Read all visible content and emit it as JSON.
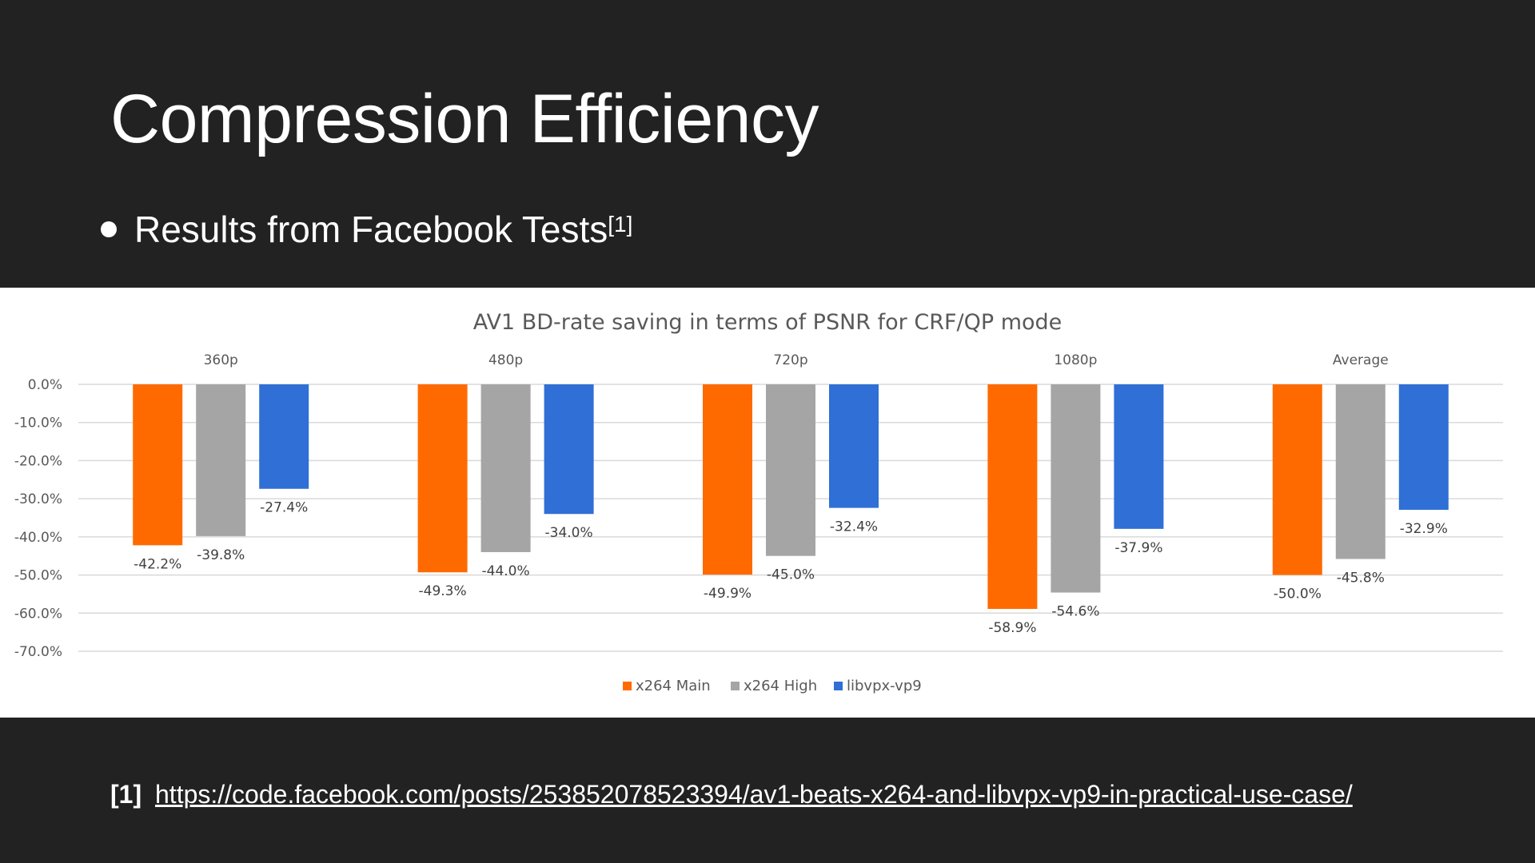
{
  "slide": {
    "title": "Compression Efficiency",
    "bullet_text": "Results from Facebook Tests",
    "bullet_ref": "[1]",
    "footnote_ref": "[1]",
    "footnote_url": "https://code.facebook.com/posts/253852078523394/av1-beats-x264-and-libvpx-vp9-in-practical-use-case/"
  },
  "colors": {
    "background": "#222222",
    "x264_main": "#FF6A00",
    "x264_high": "#A5A5A5",
    "libvpx_vp9": "#2F6FD6"
  },
  "chart_data": {
    "type": "bar",
    "title": "AV1 BD-rate saving in terms of PSNR for CRF/QP mode",
    "categories": [
      "360p",
      "480p",
      "720p",
      "1080p",
      "Average"
    ],
    "series": [
      {
        "name": "x264 Main",
        "values": [
          -42.2,
          -49.3,
          -49.9,
          -58.9,
          -50.0
        ],
        "labels": [
          "-42.2%",
          "-49.3%",
          "-49.9%",
          "-58.9%",
          "-50.0%"
        ]
      },
      {
        "name": "x264 High",
        "values": [
          -39.8,
          -44.0,
          -45.0,
          -54.6,
          -45.8
        ],
        "labels": [
          "-39.8%",
          "-44.0%",
          "-45.0%",
          "-54.6%",
          "-45.8%"
        ]
      },
      {
        "name": "libvpx-vp9",
        "values": [
          -27.4,
          -34.0,
          -32.4,
          -37.9,
          -32.9
        ],
        "labels": [
          "-27.4%",
          "-34.0%",
          "-32.4%",
          "-37.9%",
          "-32.9%"
        ]
      }
    ],
    "ylim": [
      -70,
      0
    ],
    "yticks": [
      "0.0%",
      "-10.0%",
      "-20.0%",
      "-30.0%",
      "-40.0%",
      "-50.0%",
      "-60.0%",
      "-70.0%"
    ],
    "ytick_values": [
      0,
      -10,
      -20,
      -30,
      -40,
      -50,
      -60,
      -70
    ],
    "grid": true,
    "category_labels_position": "top",
    "legend_position": "bottom-center"
  }
}
